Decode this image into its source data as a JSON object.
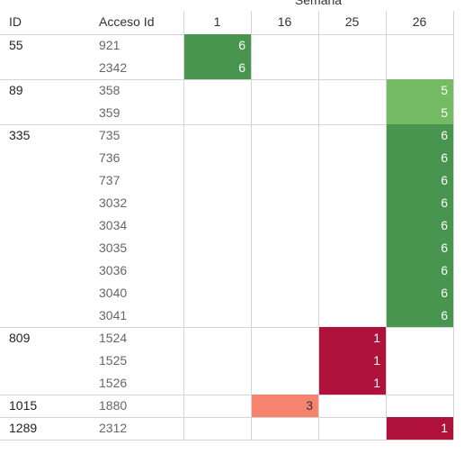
{
  "table": {
    "super_header": "Semana",
    "headers": [
      "ID",
      "Acceso Id",
      "1",
      "16",
      "25",
      "26"
    ],
    "color_scale": [
      {
        "value": 1,
        "color": "#b0113a",
        "text_color": "#ffffff"
      },
      {
        "value": 3,
        "color": "#f5836d",
        "text_color": "#333333"
      },
      {
        "value": 5,
        "color": "#74bb64",
        "text_color": "#ffffff"
      },
      {
        "value": 6,
        "color": "#47954f",
        "text_color": "#ffffff"
      }
    ],
    "groups": [
      {
        "id": "55",
        "rows": [
          {
            "acceso": "921",
            "cells": [
              6,
              null,
              null,
              null
            ]
          },
          {
            "acceso": "2342",
            "cells": [
              6,
              null,
              null,
              null
            ]
          }
        ]
      },
      {
        "id": "89",
        "rows": [
          {
            "acceso": "358",
            "cells": [
              null,
              null,
              null,
              5
            ]
          },
          {
            "acceso": "359",
            "cells": [
              null,
              null,
              null,
              5
            ]
          }
        ]
      },
      {
        "id": "335",
        "rows": [
          {
            "acceso": "735",
            "cells": [
              null,
              null,
              null,
              6
            ]
          },
          {
            "acceso": "736",
            "cells": [
              null,
              null,
              null,
              6
            ]
          },
          {
            "acceso": "737",
            "cells": [
              null,
              null,
              null,
              6
            ]
          },
          {
            "acceso": "3032",
            "cells": [
              null,
              null,
              null,
              6
            ]
          },
          {
            "acceso": "3034",
            "cells": [
              null,
              null,
              null,
              6
            ]
          },
          {
            "acceso": "3035",
            "cells": [
              null,
              null,
              null,
              6
            ]
          },
          {
            "acceso": "3036",
            "cells": [
              null,
              null,
              null,
              6
            ]
          },
          {
            "acceso": "3040",
            "cells": [
              null,
              null,
              null,
              6
            ]
          },
          {
            "acceso": "3041",
            "cells": [
              null,
              null,
              null,
              6
            ]
          }
        ]
      },
      {
        "id": "809",
        "rows": [
          {
            "acceso": "1524",
            "cells": [
              null,
              null,
              1,
              null
            ]
          },
          {
            "acceso": "1525",
            "cells": [
              null,
              null,
              1,
              null
            ]
          },
          {
            "acceso": "1526",
            "cells": [
              null,
              null,
              1,
              null
            ]
          }
        ]
      },
      {
        "id": "1015",
        "rows": [
          {
            "acceso": "1880",
            "cells": [
              null,
              3,
              null,
              null
            ]
          }
        ]
      },
      {
        "id": "1289",
        "rows": [
          {
            "acceso": "2312",
            "cells": [
              null,
              null,
              null,
              1
            ]
          }
        ]
      }
    ]
  }
}
